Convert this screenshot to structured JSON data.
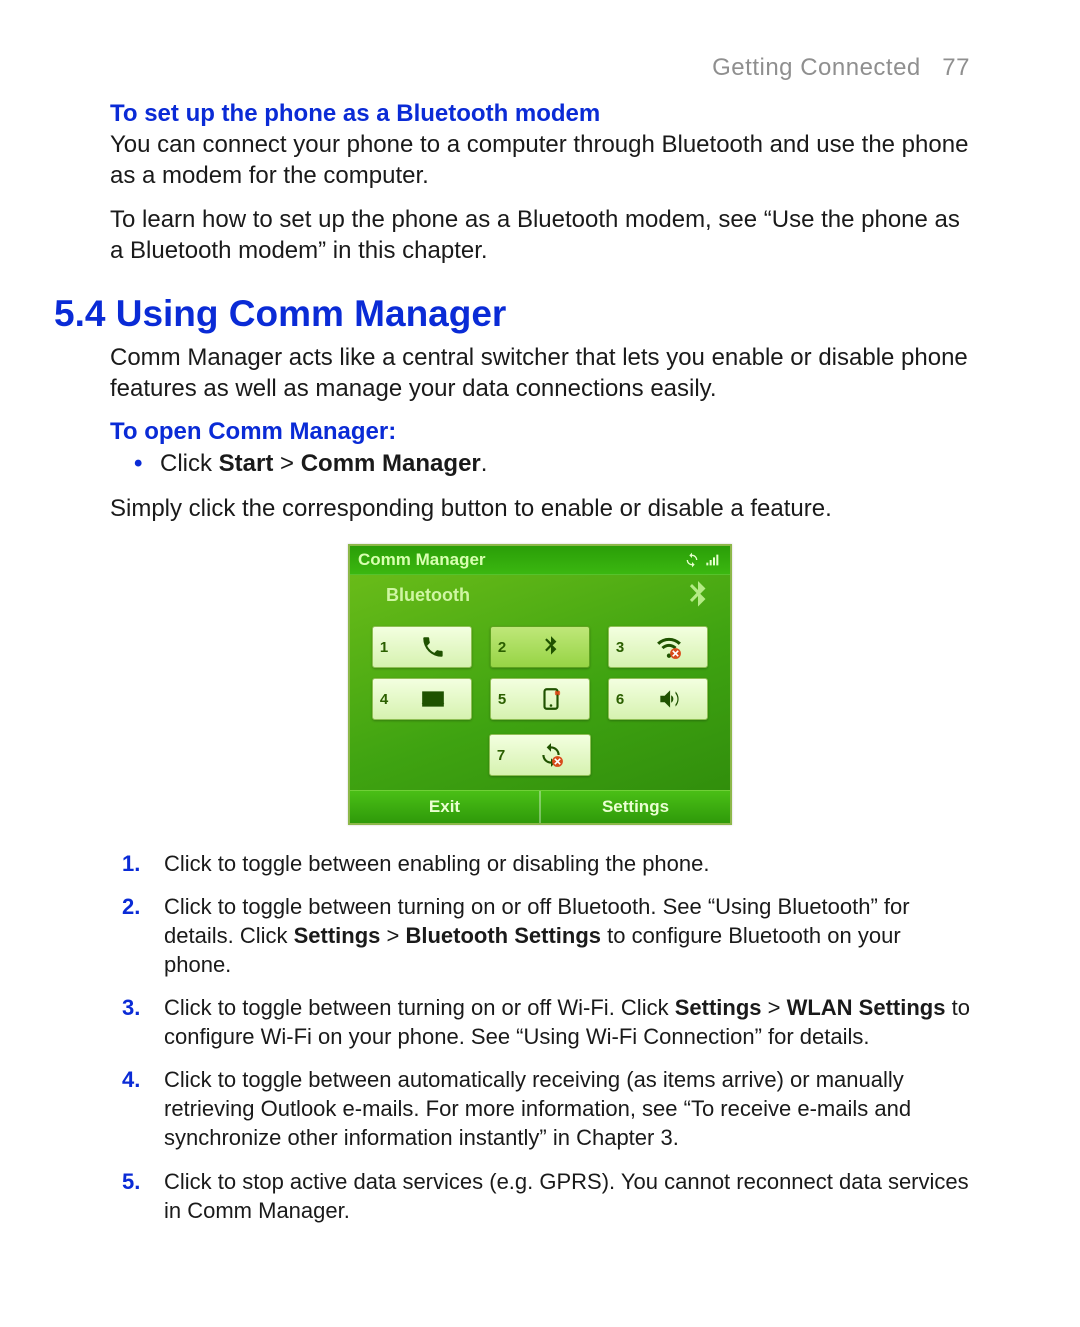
{
  "running_head": {
    "section": "Getting Connected",
    "page_number": "77"
  },
  "bt_modem": {
    "heading": "To set up the phone as a Bluetooth modem",
    "para1": "You can connect your phone to a computer through Bluetooth and use the phone as a modem for the computer.",
    "para2": "To learn how to set up the phone as a Bluetooth modem, see “Use the phone as a Bluetooth modem” in this chapter."
  },
  "section": {
    "number": "5.4",
    "title": "Using Comm Manager",
    "intro": "Comm Manager acts like a central switcher that lets you enable or disable phone features as well as manage your data connections easily.",
    "open_heading": "To open Comm Manager:",
    "open_bullet_pre": "Click ",
    "open_bullet_bold1": "Start",
    "open_bullet_mid": " > ",
    "open_bullet_bold2": "Comm Manager",
    "open_bullet_post": ".",
    "hint": "Simply click the corresponding button to enable or disable a feature."
  },
  "phone_ui": {
    "title": "Comm Manager",
    "highlight_label": "Bluetooth",
    "softkeys": {
      "left": "Exit",
      "right": "Settings"
    },
    "buttons": [
      {
        "n": "1",
        "icon": "phone"
      },
      {
        "n": "2",
        "icon": "bluetooth",
        "selected": true
      },
      {
        "n": "3",
        "icon": "wifi-off"
      },
      {
        "n": "4",
        "icon": "mail-sync"
      },
      {
        "n": "5",
        "icon": "data-off"
      },
      {
        "n": "6",
        "icon": "ringer"
      },
      {
        "n": "7",
        "icon": "activesync-off"
      }
    ],
    "colors": {
      "bg_gradient": [
        "#6fbf1a",
        "#3fa311",
        "#2e8a0b"
      ],
      "button_bg": [
        "#f3ffe0",
        "#d6f2b0"
      ],
      "button_selected_bg": [
        "#bfe779",
        "#97d445"
      ],
      "text_light": "#d7ffb0",
      "icon_dark": "#1f5200"
    }
  },
  "numbered": [
    {
      "n": "1.",
      "html": "Click to toggle between enabling or disabling the phone."
    },
    {
      "n": "2.",
      "html": "Click to toggle between turning on or off Bluetooth. See “Using Bluetooth” for details. Click <b>Settings</b> > <b>Bluetooth Settings</b> to configure Bluetooth on your phone."
    },
    {
      "n": "3.",
      "html": "Click to toggle between turning on or off Wi-Fi. Click <b>Settings</b> > <b>WLAN Settings</b> to configure Wi-Fi on your phone. See “Using Wi-Fi Connection” for details."
    },
    {
      "n": "4.",
      "html": "Click to toggle between automatically receiving (as items arrive) or manually retrieving Outlook e-mails. For more information, see “To receive e-mails and synchronize other information instantly” in Chapter 3."
    },
    {
      "n": "5.",
      "html": "Click to stop active data services (e.g. GPRS). You cannot reconnect data services in Comm Manager."
    }
  ],
  "heading_color": "#0a2bd6",
  "body_color": "#1a1a1a",
  "running_head_color": "#8f8f8f"
}
